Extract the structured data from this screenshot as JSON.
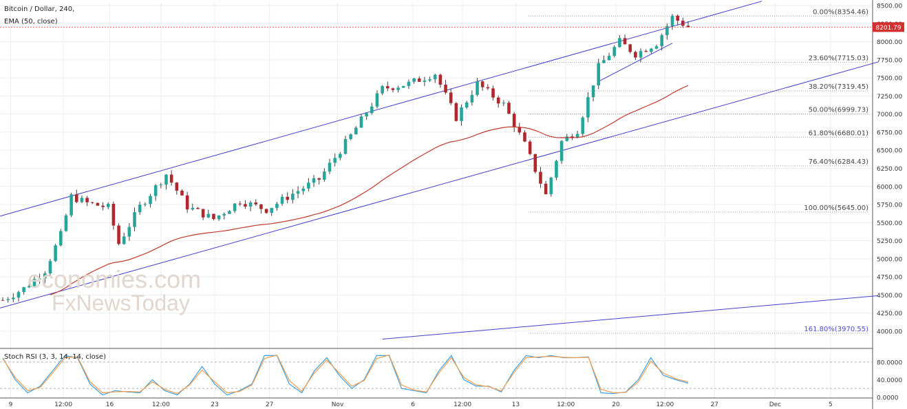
{
  "header": {
    "symbol": "Bitcoin / Dollar, 240,",
    "indicator": "EMA (50, close)",
    "stoch_label": "Stoch RSI (3, 3, 14, 14, close)"
  },
  "watermark": {
    "line1": "economies.com",
    "line2": "FxNewsToday"
  },
  "colors": {
    "up": "#26a69a",
    "down": "#b0282e",
    "wick": "#3d3d3d",
    "channel": "#4040cc",
    "ema": "#c0392b",
    "price_line": "#e53935",
    "stoch_k": "#3aa0e0",
    "stoch_d": "#f39c4a",
    "fib": "#888888"
  },
  "chart_data": [
    {
      "type": "candlestick",
      "title": "Bitcoin / Dollar, 240,",
      "ylim": [
        3800,
        8500
      ],
      "y_ticks": [
        "4000.00",
        "4250.00",
        "4500.00",
        "4750.00",
        "5000.00",
        "5250.00",
        "5500.00",
        "5750.00",
        "6000.00",
        "6250.00",
        "6500.00",
        "6750.00",
        "7000.00",
        "7250.00",
        "7500.00",
        "7750.00",
        "8000.00",
        "8250.00",
        "8500.00"
      ],
      "x_ticks": [
        "9",
        "12:00",
        "16",
        "12:00",
        "23",
        "27",
        "Nov",
        "6",
        "12:00",
        "13",
        "12:00",
        "20",
        "12:00",
        "27",
        "Dec",
        "5"
      ],
      "last_price": "8201.79",
      "price_path": [
        [
          0,
          4430
        ],
        [
          4,
          4590
        ],
        [
          8,
          4840
        ],
        [
          11,
          5330
        ],
        [
          13,
          5860
        ],
        [
          16,
          5770
        ],
        [
          20,
          5710
        ],
        [
          22,
          5210
        ],
        [
          26,
          5720
        ],
        [
          31,
          6170
        ],
        [
          35,
          5720
        ],
        [
          40,
          5550
        ],
        [
          45,
          5800
        ],
        [
          50,
          5680
        ],
        [
          55,
          5900
        ],
        [
          60,
          6100
        ],
        [
          66,
          6700
        ],
        [
          72,
          7350
        ],
        [
          77,
          7420
        ],
        [
          82,
          7560
        ],
        [
          86,
          6950
        ],
        [
          90,
          7420
        ],
        [
          95,
          7130
        ],
        [
          99,
          6580
        ],
        [
          103,
          5880
        ],
        [
          106,
          6620
        ],
        [
          109,
          6780
        ],
        [
          113,
          7650
        ],
        [
          117,
          8000
        ],
        [
          120,
          7830
        ],
        [
          124,
          7980
        ],
        [
          127,
          8340
        ],
        [
          130,
          8201.79
        ]
      ],
      "fibonacci": [
        {
          "label": "0.00%(8354.46)",
          "value": 8354.46
        },
        {
          "label": "23.60%(7715.03)",
          "value": 7715.03
        },
        {
          "label": "38.20%(7319.45)",
          "value": 7319.45
        },
        {
          "label": "50.00%(6999.73)",
          "value": 6999.73
        },
        {
          "label": "61.80%(6680.01)",
          "value": 6680.01
        },
        {
          "label": "76.40%(6284.43)",
          "value": 6284.43
        },
        {
          "label": "100.00%(5645.00)",
          "value": 5645.0
        },
        {
          "label": "161.80%(3970.55)",
          "value": 3970.55
        }
      ]
    },
    {
      "type": "line",
      "title": "Stoch RSI (3, 3, 14, 14, close)",
      "ylim": [
        -5,
        105
      ],
      "y_ticks": [
        "0.0000",
        "40.0000",
        "80.0000"
      ],
      "ref_lines": [
        20,
        80
      ],
      "series": [
        {
          "name": "K",
          "values": [
            90,
            40,
            10,
            25,
            60,
            95,
            90,
            30,
            5,
            15,
            12,
            10,
            40,
            15,
            5,
            30,
            70,
            30,
            5,
            15,
            30,
            95,
            95,
            30,
            10,
            60,
            90,
            50,
            20,
            40,
            95,
            95,
            20,
            15,
            10,
            60,
            95,
            40,
            25,
            25,
            12,
            60,
            95,
            90,
            95,
            90,
            90,
            92,
            10,
            8,
            12,
            40,
            90,
            50,
            40,
            32
          ]
        },
        {
          "name": "D",
          "values": [
            88,
            45,
            15,
            22,
            55,
            90,
            92,
            35,
            10,
            12,
            13,
            12,
            35,
            18,
            8,
            28,
            62,
            35,
            10,
            13,
            28,
            88,
            96,
            38,
            13,
            55,
            85,
            55,
            25,
            38,
            88,
            96,
            28,
            16,
            12,
            55,
            90,
            45,
            28,
            24,
            14,
            55,
            90,
            92,
            93,
            91,
            90,
            91,
            18,
            10,
            11,
            35,
            82,
            55,
            42,
            35
          ]
        }
      ]
    }
  ]
}
